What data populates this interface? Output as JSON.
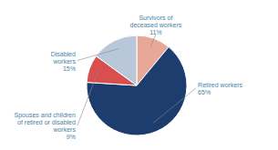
{
  "chart_data": {
    "type": "pie",
    "categories": [
      "Survivors of\ndeceased workers",
      "Retired workers",
      "Spouses and children\nof retired or disabled\nworkers",
      "Disabled\nworkers"
    ],
    "values": [
      11,
      65,
      9,
      15
    ],
    "value_labels": [
      "11%",
      "65%",
      "9%",
      "15%"
    ],
    "colors": [
      "#e8a898",
      "#1c3d6e",
      "#d94f4f",
      "#b8c8d8"
    ],
    "data_labels": true
  }
}
